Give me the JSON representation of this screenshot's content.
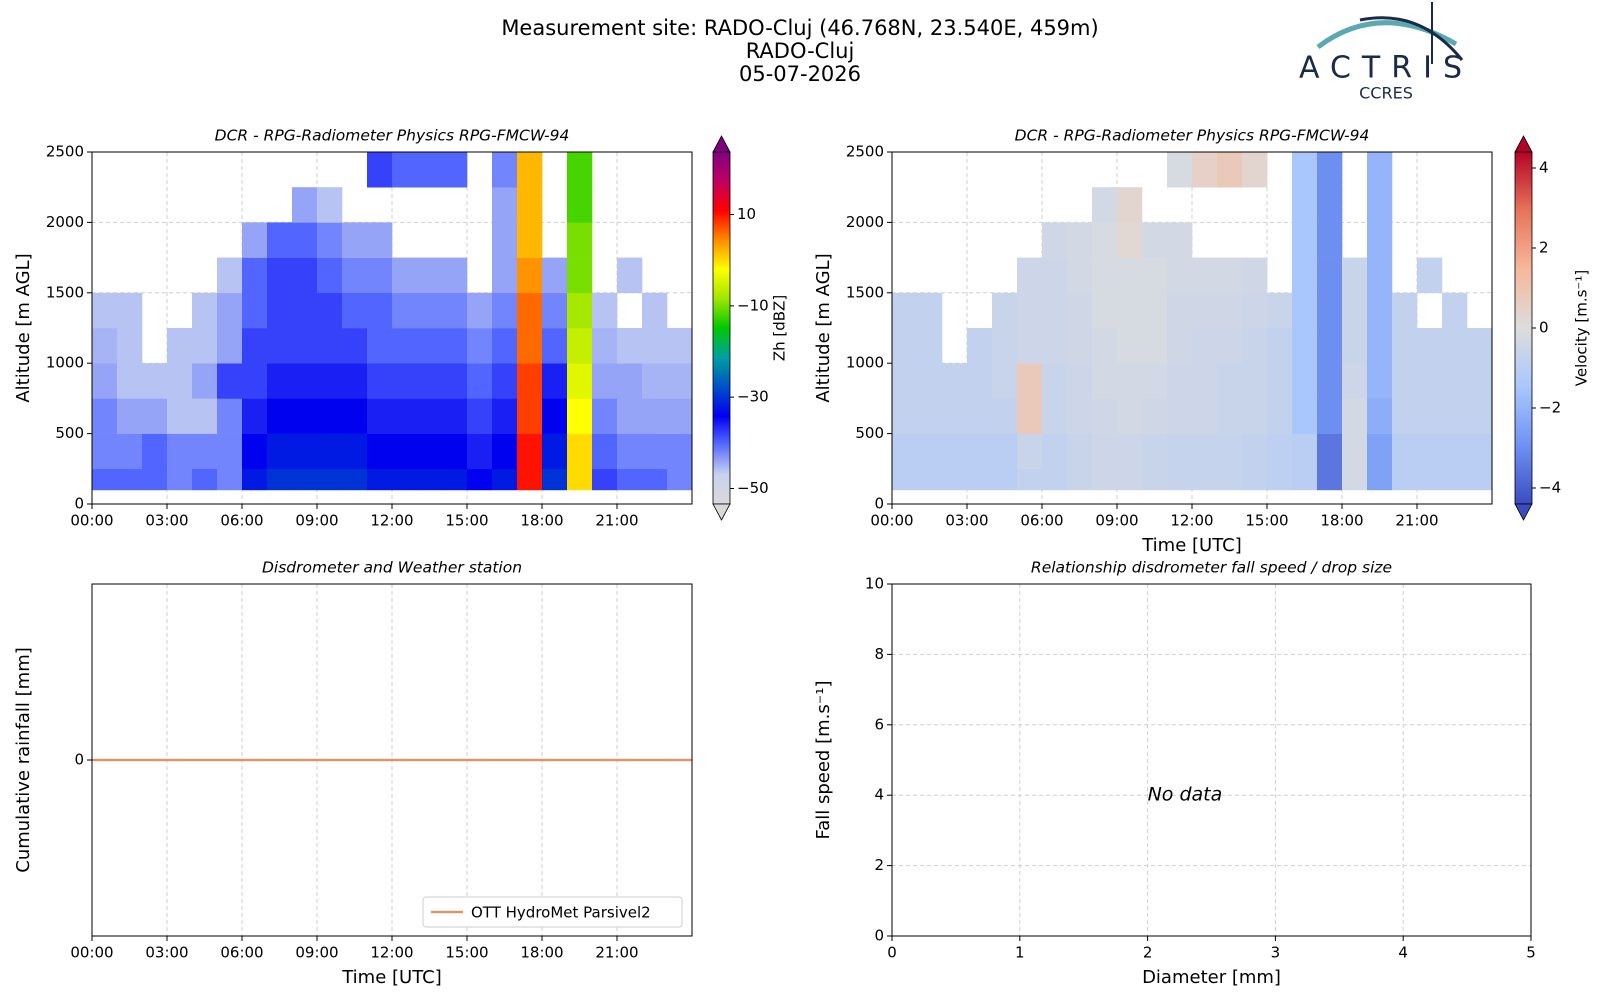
{
  "header": {
    "title": [
      "Measurement site: RADO-Cluj (46.768N, 23.540E, 459m)",
      "RADO-Cluj",
      "05-07-2026"
    ]
  },
  "logo": {
    "name": "ACTRIS",
    "subtitle": "CCRES"
  },
  "chart_data": [
    {
      "type": "heatmap",
      "title": "DCR - RPG-Radiometer Physics RPG-FMCW-94",
      "ylabel": "Altitude [m AGL]",
      "colorbar_label": "Zh [dBZ]",
      "xbins": [
        0,
        1,
        2,
        3,
        4,
        5,
        6,
        7,
        8,
        9,
        10,
        11,
        12,
        13,
        14,
        15,
        16,
        17,
        18,
        19,
        20,
        21,
        22,
        23,
        24
      ],
      "ybins": [
        100,
        250,
        500,
        750,
        1000,
        1250,
        1500,
        1750,
        2000,
        2250,
        2500
      ],
      "values": [
        [
          -40,
          -40,
          -40,
          -42,
          -40,
          -42,
          -32,
          -30,
          -30,
          -30,
          -30,
          -32,
          -32,
          -32,
          -32,
          -34,
          -32,
          10,
          -30,
          0,
          -38,
          -40,
          -40,
          -42
        ],
        [
          -42,
          -42,
          -40,
          -42,
          -42,
          -42,
          -34,
          -32,
          -32,
          -32,
          -32,
          -34,
          -34,
          -34,
          -34,
          -36,
          -34,
          10,
          -32,
          0,
          -40,
          -42,
          -42,
          -42
        ],
        [
          -42,
          -44,
          -44,
          -46,
          -46,
          -42,
          -36,
          -34,
          -34,
          -34,
          -34,
          -36,
          -36,
          -36,
          -36,
          -38,
          -36,
          8,
          -34,
          -2,
          -42,
          -44,
          -44,
          -44
        ],
        [
          -44,
          -46,
          -46,
          -46,
          -44,
          -38,
          -38,
          -36,
          -36,
          -36,
          -36,
          -38,
          -38,
          -38,
          -38,
          -40,
          -38,
          8,
          -36,
          -4,
          -44,
          -44,
          -45,
          -45
        ],
        [
          -45,
          -46,
          null,
          -46,
          -46,
          -44,
          -38,
          -38,
          -38,
          -38,
          -38,
          -40,
          -40,
          -40,
          -40,
          -42,
          -40,
          6,
          -40,
          -6,
          -45,
          -46,
          -46,
          -46
        ],
        [
          -46,
          -46,
          null,
          null,
          -46,
          -44,
          -40,
          -38,
          -38,
          -38,
          -40,
          -40,
          -42,
          -42,
          -42,
          -44,
          -42,
          6,
          -42,
          -8,
          -46,
          null,
          -46,
          null
        ],
        [
          null,
          null,
          null,
          null,
          null,
          -46,
          -40,
          -38,
          -38,
          -40,
          -42,
          -42,
          -44,
          -44,
          -44,
          null,
          -44,
          4,
          -44,
          -10,
          null,
          -46,
          null,
          null
        ],
        [
          null,
          null,
          null,
          null,
          null,
          null,
          -44,
          -40,
          -40,
          -42,
          -44,
          -44,
          null,
          null,
          null,
          null,
          -44,
          2,
          null,
          -10,
          null,
          null,
          null,
          null
        ],
        [
          null,
          null,
          null,
          null,
          null,
          null,
          null,
          null,
          -44,
          -46,
          null,
          null,
          null,
          null,
          null,
          null,
          -44,
          2,
          null,
          -12,
          null,
          null,
          null,
          null
        ],
        [
          null,
          null,
          null,
          null,
          null,
          null,
          null,
          null,
          null,
          null,
          null,
          -38,
          -40,
          -40,
          -40,
          null,
          -42,
          2,
          null,
          -12,
          null,
          null,
          null,
          null
        ]
      ],
      "zlim": [
        -53.4,
        23.7
      ],
      "zticks": [
        {
          "value": -50,
          "label": "−50"
        },
        {
          "value": -30,
          "label": "−30"
        },
        {
          "value": -10,
          "label": "−10"
        },
        10
      ],
      "colormap": [
        "#d9d9d9",
        "#c8d2f0",
        "#5a6eff",
        "#0000f0",
        "#0050c8",
        "#00a0a0",
        "#00c800",
        "#a0e600",
        "#ffff00",
        "#ff8c00",
        "#ff0000",
        "#c00060",
        "#800080"
      ],
      "xlim": [
        0,
        24
      ],
      "ylim": [
        0,
        2500
      ],
      "xticks": [
        {
          "value": 0,
          "label": "00:00"
        },
        {
          "value": 3,
          "label": "03:00"
        },
        {
          "value": 6,
          "label": "06:00"
        },
        {
          "value": 9,
          "label": "09:00"
        },
        {
          "value": 12,
          "label": "12:00"
        },
        {
          "value": 15,
          "label": "15:00"
        },
        {
          "value": 18,
          "label": "18:00"
        },
        {
          "value": 21,
          "label": "21:00"
        }
      ],
      "yticks": [
        0,
        500,
        1000,
        1500,
        2000,
        2500
      ],
      "grid": true
    },
    {
      "type": "heatmap",
      "title": "DCR - RPG-Radiometer Physics RPG-FMCW-94",
      "xlabel": "Time [UTC]",
      "ylabel": "Altitude [m AGL]",
      "colorbar_label": "Velocity [m.s⁻¹]",
      "xbins": [
        0,
        1,
        2,
        3,
        4,
        5,
        6,
        7,
        8,
        9,
        10,
        11,
        12,
        13,
        14,
        15,
        16,
        17,
        18,
        19,
        20,
        21,
        22,
        23,
        24
      ],
      "ybins": [
        100,
        250,
        500,
        750,
        1000,
        1250,
        1500,
        1750,
        2000,
        2250,
        2500
      ],
      "values": [
        [
          -1,
          -1,
          -1,
          -1,
          -1,
          -0.8,
          -0.8,
          -0.6,
          -0.5,
          -0.5,
          -0.6,
          -0.7,
          -0.7,
          -0.7,
          -0.8,
          -0.9,
          -1,
          -3.5,
          -0.3,
          -2.5,
          -1,
          -1,
          -1,
          -1
        ],
        [
          -1,
          -1,
          -1,
          -1,
          -1,
          -0.6,
          -0.8,
          -0.6,
          -0.5,
          -0.5,
          -0.6,
          -0.7,
          -0.7,
          -0.7,
          -0.8,
          -0.9,
          -1,
          -3.5,
          -0.3,
          -2.5,
          -1,
          -1,
          -1,
          -1
        ],
        [
          -0.8,
          -0.8,
          -0.8,
          -0.8,
          -0.8,
          0.8,
          -0.6,
          -0.5,
          -0.4,
          -0.3,
          -0.4,
          -0.5,
          -0.5,
          -0.6,
          -0.6,
          -0.8,
          -1.5,
          -3,
          -0.3,
          -2.2,
          -0.8,
          -0.8,
          -0.8,
          -0.8
        ],
        [
          -0.8,
          -0.8,
          -0.8,
          -0.8,
          -0.6,
          0.8,
          -0.6,
          -0.5,
          -0.3,
          -0.3,
          -0.3,
          -0.5,
          -0.5,
          -0.6,
          -0.6,
          -0.8,
          -1.5,
          -3,
          -0.5,
          -2,
          -0.8,
          -0.8,
          -0.8,
          -0.8
        ],
        [
          -0.8,
          -0.8,
          null,
          -0.8,
          -0.6,
          -0.5,
          -0.5,
          -0.4,
          -0.3,
          -0.2,
          -0.2,
          -0.4,
          -0.5,
          -0.5,
          -0.6,
          -0.8,
          -1.5,
          -3,
          -0.6,
          -2,
          -0.8,
          -0.8,
          -0.8,
          -0.8
        ],
        [
          -0.8,
          -0.8,
          null,
          null,
          -0.6,
          -0.5,
          -0.5,
          -0.4,
          -0.2,
          -0.2,
          -0.2,
          -0.4,
          -0.4,
          -0.4,
          -0.5,
          -0.6,
          -1.5,
          -3,
          -0.6,
          -2,
          -0.8,
          null,
          -0.8,
          null
        ],
        [
          null,
          null,
          null,
          null,
          null,
          -0.5,
          -0.5,
          -0.3,
          -0.2,
          -0.2,
          -0.2,
          -0.3,
          -0.3,
          -0.3,
          -0.4,
          null,
          -1.5,
          -3,
          -0.6,
          -2,
          null,
          -0.8,
          null,
          null
        ],
        [
          null,
          null,
          null,
          null,
          null,
          null,
          -0.4,
          -0.3,
          -0.2,
          0.2,
          -0.3,
          -0.3,
          null,
          null,
          null,
          null,
          -1.5,
          -3,
          null,
          -2,
          null,
          null,
          null,
          null
        ],
        [
          null,
          null,
          null,
          null,
          null,
          null,
          null,
          null,
          -0.3,
          0.3,
          null,
          null,
          null,
          null,
          null,
          null,
          -1.5,
          -3,
          null,
          -2,
          null,
          null,
          null,
          null
        ],
        [
          null,
          null,
          null,
          null,
          null,
          null,
          null,
          null,
          null,
          null,
          null,
          -0.2,
          0.5,
          0.8,
          0.3,
          null,
          -1.5,
          -3,
          null,
          -2,
          null,
          null,
          null,
          null
        ]
      ],
      "zlim": [
        -4.4,
        4.4
      ],
      "zticks": [
        {
          "value": -4,
          "label": "−4"
        },
        {
          "value": -2,
          "label": "−2"
        },
        0,
        2,
        4
      ],
      "colormap": [
        "#3b4cc0",
        "#6f92f3",
        "#aac7fd",
        "#dddddd",
        "#f7b89c",
        "#e7745b",
        "#b40426"
      ],
      "xlim": [
        0,
        24
      ],
      "ylim": [
        0,
        2500
      ],
      "xticks": [
        {
          "value": 0,
          "label": "00:00"
        },
        {
          "value": 3,
          "label": "03:00"
        },
        {
          "value": 6,
          "label": "06:00"
        },
        {
          "value": 9,
          "label": "09:00"
        },
        {
          "value": 12,
          "label": "12:00"
        },
        {
          "value": 15,
          "label": "15:00"
        },
        {
          "value": 18,
          "label": "18:00"
        },
        {
          "value": 21,
          "label": "21:00"
        }
      ],
      "yticks": [
        0,
        500,
        1000,
        1500,
        2000,
        2500
      ],
      "grid": true
    },
    {
      "type": "line",
      "title": "Disdrometer and Weather station",
      "xlabel": "Time [UTC]",
      "ylabel": "Cumulative rainfall [mm]",
      "x": [
        0,
        24
      ],
      "series": [
        {
          "name": "OTT HydroMet Parsivel2",
          "color": "#f08c5a",
          "values": [
            0,
            0
          ]
        }
      ],
      "xlim": [
        0,
        24
      ],
      "ylim": [
        -0.055,
        0.055
      ],
      "xticks": [
        {
          "value": 0,
          "label": "00:00"
        },
        {
          "value": 3,
          "label": "03:00"
        },
        {
          "value": 6,
          "label": "06:00"
        },
        {
          "value": 9,
          "label": "09:00"
        },
        {
          "value": 12,
          "label": "12:00"
        },
        {
          "value": 15,
          "label": "15:00"
        },
        {
          "value": 18,
          "label": "18:00"
        },
        {
          "value": 21,
          "label": "21:00"
        }
      ],
      "yticks": [
        0
      ],
      "grid": true,
      "legend": "lower right"
    },
    {
      "type": "scatter",
      "title": "Relationship disdrometer fall speed / drop size",
      "xlabel": "Diameter [mm]",
      "ylabel": "Fall speed [m.s⁻¹]",
      "annotation": "No data",
      "xlim": [
        0,
        5
      ],
      "ylim": [
        0,
        10
      ],
      "xticks": [
        0,
        1,
        2,
        3,
        4,
        5
      ],
      "yticks": [
        0,
        2,
        4,
        6,
        8,
        10
      ],
      "grid": true
    }
  ]
}
